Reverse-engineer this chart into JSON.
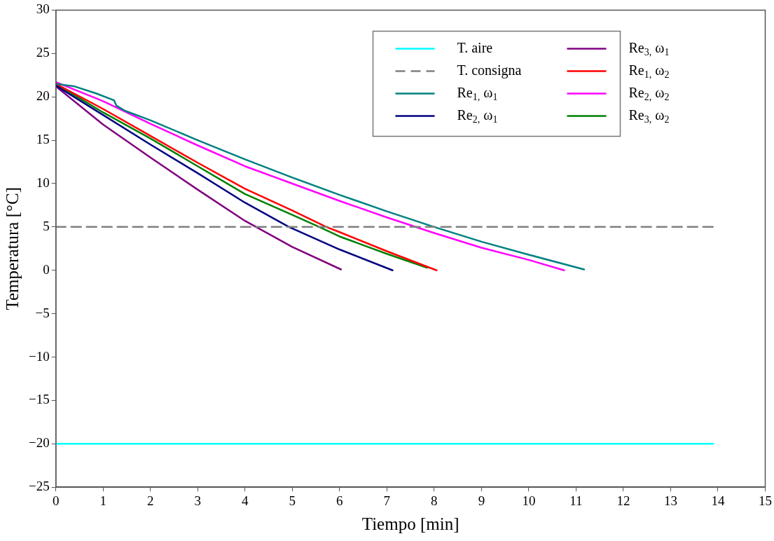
{
  "chart_data": {
    "type": "line",
    "xlabel": "Tiempo [min]",
    "ylabel": "Temperatura [°C]",
    "xlim": [
      0,
      15
    ],
    "ylim": [
      -25,
      30
    ],
    "xticks": [
      0,
      1,
      2,
      3,
      4,
      5,
      6,
      7,
      8,
      9,
      10,
      11,
      12,
      13,
      14,
      15
    ],
    "yticks": [
      -25,
      -20,
      -15,
      -10,
      -5,
      0,
      5,
      10,
      15,
      20,
      25,
      30
    ],
    "grid": false,
    "legend": "top right",
    "marker": "none",
    "series": [
      {
        "name": "T. aire",
        "color": "#00ffff",
        "x": [
          0,
          13.9
        ],
        "values": [
          -20,
          -20
        ]
      },
      {
        "name": "T. consigna",
        "color": "#808080",
        "line_style": "dashed",
        "x": [
          0,
          13.9
        ],
        "values": [
          5,
          5
        ]
      },
      {
        "name": "Re$_{1,}$ ω$_{1}$",
        "color": "#008080",
        "x": [
          0,
          0.4,
          0.85,
          1.23,
          1.28,
          1.46,
          2,
          3,
          4,
          5,
          6,
          7,
          8,
          9,
          10,
          11.17
        ],
        "values": [
          21.5,
          21.2,
          20.4,
          19.6,
          19.0,
          18.4,
          17.3,
          15.0,
          12.8,
          10.7,
          8.7,
          6.8,
          5.0,
          3.3,
          1.8,
          0.1
        ]
      },
      {
        "name": "Re$_{2,}$ ω$_{1}$",
        "color": "#000080",
        "x": [
          0,
          1,
          2,
          3,
          4,
          4.93,
          6,
          7.12
        ],
        "values": [
          21.3,
          17.9,
          14.5,
          11.2,
          7.8,
          5,
          2.4,
          0
        ]
      },
      {
        "name": "Re$_{3,}$ ω$_{1}$",
        "color": "#800080",
        "x": [
          0,
          1,
          2,
          3,
          4,
          5,
          6.03
        ],
        "values": [
          21.2,
          16.8,
          13.0,
          9.3,
          5.7,
          2.7,
          0.1
        ]
      },
      {
        "name": "Re$_{1,}$ ω$_{2}$",
        "color": "#ff0000",
        "x": [
          0,
          1,
          2,
          3,
          4,
          5,
          5.72,
          6,
          7,
          8.05
        ],
        "values": [
          21.5,
          18.6,
          15.5,
          12.4,
          9.4,
          6.9,
          5,
          4.4,
          2.2,
          0
        ]
      },
      {
        "name": "Re$_{2,}$ ω$_{2}$",
        "color": "#ff00ff",
        "x": [
          0,
          1,
          2,
          3,
          4,
          5,
          6,
          7,
          8,
          9,
          10,
          10.75
        ],
        "values": [
          21.7,
          19.5,
          16.9,
          14.4,
          12.0,
          10.0,
          8.0,
          6.1,
          4.3,
          2.6,
          1.2,
          0
        ]
      },
      {
        "name": "Re$_{3,}$ ω$_{2}$",
        "color": "#008000",
        "x": [
          0,
          1,
          2,
          3,
          4,
          5,
          5.57,
          6,
          7,
          7.85
        ],
        "values": [
          21.5,
          18.2,
          15.2,
          12.0,
          8.8,
          6.4,
          5,
          3.9,
          1.9,
          0.3
        ]
      }
    ]
  }
}
